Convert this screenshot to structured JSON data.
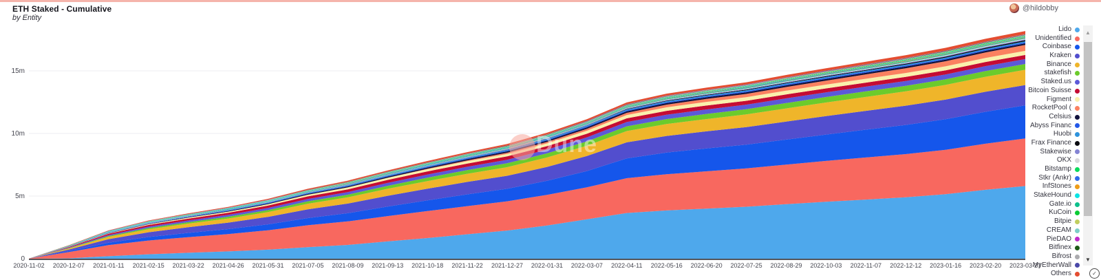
{
  "header": {
    "title": "ETH Staked - Cumulative",
    "subtitle": "by Entity",
    "author": "@hildobby"
  },
  "watermark": {
    "text": "Dune"
  },
  "icons": {
    "scroll_up": "▲",
    "scroll_down": "▼",
    "check": "✓"
  },
  "chart_data": {
    "type": "area",
    "stacked": true,
    "title": "ETH Staked - Cumulative",
    "subtitle": "by Entity",
    "unit": "ETH (millions)",
    "grid": true,
    "legend_position": "right",
    "ylim": [
      0,
      18.5
    ],
    "yticks": [
      {
        "label": "0",
        "value": 0
      },
      {
        "label": "5m",
        "value": 5
      },
      {
        "label": "10m",
        "value": 10
      },
      {
        "label": "15m",
        "value": 15
      }
    ],
    "x": [
      "2020-11-02",
      "2020-12-07",
      "2021-01-11",
      "2021-02-15",
      "2021-03-22",
      "2021-04-26",
      "2021-05-31",
      "2021-07-05",
      "2021-08-09",
      "2021-09-13",
      "2021-10-18",
      "2021-11-22",
      "2021-12-27",
      "2022-01-31",
      "2022-03-07",
      "2022-04-11",
      "2022-05-16",
      "2022-06-20",
      "2022-07-25",
      "2022-08-29",
      "2022-10-03",
      "2022-11-07",
      "2022-12-12",
      "2023-01-16",
      "2023-02-20",
      "2023-03-27"
    ],
    "series": [
      {
        "name": "Lido",
        "color": "#4EA8EC",
        "values": [
          0,
          0.03,
          0.2,
          0.35,
          0.47,
          0.58,
          0.72,
          0.92,
          1.1,
          1.38,
          1.65,
          1.95,
          2.25,
          2.65,
          3.15,
          3.65,
          3.85,
          4.0,
          4.15,
          4.35,
          4.55,
          4.72,
          4.9,
          5.15,
          5.5,
          5.8
        ]
      },
      {
        "name": "Unidentified",
        "color": "#F8685F",
        "values": [
          0.01,
          0.5,
          0.88,
          1.1,
          1.25,
          1.38,
          1.55,
          1.75,
          1.88,
          2.02,
          2.15,
          2.25,
          2.33,
          2.45,
          2.55,
          2.78,
          2.9,
          2.98,
          3.06,
          3.16,
          3.26,
          3.36,
          3.45,
          3.55,
          3.68,
          3.8
        ]
      },
      {
        "name": "Coinbase",
        "color": "#1556EB",
        "values": [
          0,
          0.08,
          0.2,
          0.28,
          0.34,
          0.4,
          0.47,
          0.57,
          0.65,
          0.76,
          0.86,
          0.94,
          1.0,
          1.12,
          1.3,
          1.58,
          1.72,
          1.82,
          1.9,
          2.0,
          2.1,
          2.22,
          2.33,
          2.44,
          2.55,
          2.65
        ]
      },
      {
        "name": "Kraken",
        "color": "#524ECE",
        "values": [
          0,
          0.12,
          0.28,
          0.38,
          0.45,
          0.52,
          0.6,
          0.7,
          0.77,
          0.86,
          0.93,
          0.99,
          1.04,
          1.11,
          1.2,
          1.28,
          1.33,
          1.37,
          1.4,
          1.44,
          1.48,
          1.51,
          1.54,
          1.57,
          1.6,
          1.62
        ]
      },
      {
        "name": "Binance",
        "color": "#EFB52A",
        "values": [
          0,
          0.08,
          0.18,
          0.24,
          0.29,
          0.33,
          0.38,
          0.45,
          0.5,
          0.56,
          0.61,
          0.65,
          0.69,
          0.75,
          0.82,
          0.9,
          0.95,
          0.98,
          1.01,
          1.05,
          1.08,
          1.11,
          1.14,
          1.17,
          1.2,
          1.22
        ]
      },
      {
        "name": "stakefish",
        "color": "#6CCB2C",
        "values": [
          0,
          0.03,
          0.07,
          0.1,
          0.12,
          0.14,
          0.16,
          0.19,
          0.21,
          0.24,
          0.27,
          0.29,
          0.31,
          0.33,
          0.35,
          0.38,
          0.4,
          0.41,
          0.42,
          0.43,
          0.44,
          0.44,
          0.45,
          0.45,
          0.46,
          0.46
        ]
      },
      {
        "name": "Staked.us",
        "color": "#5C59D8",
        "values": [
          0,
          0.04,
          0.08,
          0.11,
          0.13,
          0.15,
          0.17,
          0.19,
          0.21,
          0.23,
          0.25,
          0.27,
          0.28,
          0.3,
          0.32,
          0.34,
          0.35,
          0.36,
          0.36,
          0.37,
          0.37,
          0.38,
          0.38,
          0.38,
          0.39,
          0.39
        ]
      },
      {
        "name": "Bitcoin Suisse",
        "color": "#C50C33",
        "values": [
          0,
          0.05,
          0.1,
          0.13,
          0.15,
          0.17,
          0.19,
          0.21,
          0.22,
          0.24,
          0.25,
          0.26,
          0.27,
          0.28,
          0.29,
          0.3,
          0.31,
          0.31,
          0.31,
          0.32,
          0.32,
          0.32,
          0.33,
          0.33,
          0.33,
          0.33
        ]
      },
      {
        "name": "Figment",
        "color": "#FAF0AC",
        "values": [
          0,
          0.02,
          0.04,
          0.06,
          0.08,
          0.09,
          0.11,
          0.13,
          0.15,
          0.17,
          0.18,
          0.19,
          0.2,
          0.22,
          0.24,
          0.26,
          0.28,
          0.29,
          0.29,
          0.3,
          0.3,
          0.31,
          0.31,
          0.32,
          0.32,
          0.33
        ]
      },
      {
        "name": "RocketPool (",
        "color": "#FB8160",
        "values": [
          0,
          0,
          0,
          0,
          0,
          0,
          0,
          0,
          0,
          0,
          0.03,
          0.06,
          0.09,
          0.12,
          0.15,
          0.18,
          0.21,
          0.24,
          0.26,
          0.29,
          0.32,
          0.35,
          0.38,
          0.41,
          0.44,
          0.47
        ]
      },
      {
        "name": "Celsius",
        "color": "#12123C",
        "values": [
          0,
          0.01,
          0.02,
          0.03,
          0.04,
          0.05,
          0.06,
          0.07,
          0.08,
          0.09,
          0.1,
          0.1,
          0.11,
          0.11,
          0.12,
          0.12,
          0.13,
          0.13,
          0.13,
          0.13,
          0.13,
          0.13,
          0.13,
          0.13,
          0.13,
          0.13
        ]
      },
      {
        "name": "Abyss Financ",
        "color": "#2458E8",
        "values": [
          0,
          0.01,
          0.02,
          0.02,
          0.03,
          0.03,
          0.04,
          0.04,
          0.05,
          0.05,
          0.05,
          0.06,
          0.06,
          0.06,
          0.07,
          0.07,
          0.07,
          0.07,
          0.08,
          0.08,
          0.08,
          0.08,
          0.08,
          0.08,
          0.08,
          0.08
        ]
      },
      {
        "name": "Huobi",
        "color": "#2E93DC",
        "values": [
          0,
          0.01,
          0.02,
          0.03,
          0.03,
          0.04,
          0.04,
          0.05,
          0.05,
          0.06,
          0.06,
          0.06,
          0.07,
          0.07,
          0.07,
          0.08,
          0.08,
          0.08,
          0.08,
          0.08,
          0.08,
          0.08,
          0.08,
          0.08,
          0.08,
          0.08
        ]
      },
      {
        "name": "Frax Finance",
        "color": "#0B0C12",
        "values": [
          0,
          0,
          0,
          0,
          0,
          0,
          0,
          0,
          0,
          0,
          0,
          0,
          0.01,
          0.02,
          0.02,
          0.03,
          0.04,
          0.04,
          0.05,
          0.05,
          0.06,
          0.06,
          0.07,
          0.07,
          0.08,
          0.09
        ]
      },
      {
        "name": "Stakewise",
        "color": "#8484D4",
        "values": [
          0,
          0.01,
          0.01,
          0.02,
          0.02,
          0.03,
          0.03,
          0.03,
          0.04,
          0.04,
          0.04,
          0.05,
          0.05,
          0.05,
          0.05,
          0.06,
          0.06,
          0.06,
          0.06,
          0.06,
          0.06,
          0.06,
          0.06,
          0.07,
          0.07,
          0.07
        ]
      },
      {
        "name": "OKX",
        "color": "#D9D9DC",
        "values": [
          0,
          0,
          0.01,
          0.01,
          0.01,
          0.01,
          0.02,
          0.02,
          0.02,
          0.02,
          0.02,
          0.03,
          0.03,
          0.03,
          0.03,
          0.04,
          0.04,
          0.04,
          0.04,
          0.05,
          0.05,
          0.05,
          0.05,
          0.06,
          0.06,
          0.06
        ]
      },
      {
        "name": "Bitstamp",
        "color": "#0ADB5B",
        "values": [
          0,
          0.01,
          0.01,
          0.01,
          0.02,
          0.02,
          0.02,
          0.02,
          0.02,
          0.03,
          0.03,
          0.03,
          0.03,
          0.03,
          0.03,
          0.03,
          0.04,
          0.04,
          0.04,
          0.04,
          0.04,
          0.04,
          0.04,
          0.04,
          0.04,
          0.04
        ]
      },
      {
        "name": "Stkr (Ankr)",
        "color": "#2F6BEA",
        "values": [
          0,
          0.01,
          0.01,
          0.02,
          0.02,
          0.02,
          0.02,
          0.02,
          0.03,
          0.03,
          0.03,
          0.03,
          0.03,
          0.03,
          0.03,
          0.03,
          0.03,
          0.04,
          0.04,
          0.04,
          0.04,
          0.04,
          0.04,
          0.04,
          0.04,
          0.04
        ]
      },
      {
        "name": "InfStones",
        "color": "#EE9D19",
        "values": [
          0,
          0,
          0.01,
          0.01,
          0.01,
          0.01,
          0.01,
          0.01,
          0.02,
          0.02,
          0.02,
          0.02,
          0.02,
          0.02,
          0.02,
          0.03,
          0.03,
          0.03,
          0.03,
          0.03,
          0.03,
          0.03,
          0.04,
          0.04,
          0.04,
          0.04
        ]
      },
      {
        "name": "StakeHound",
        "color": "#0CE4E4",
        "values": [
          0,
          0.01,
          0.03,
          0.03,
          0.03,
          0.03,
          0.03,
          0.03,
          0.03,
          0.03,
          0.03,
          0.03,
          0.03,
          0.03,
          0.03,
          0.03,
          0.03,
          0.03,
          0.03,
          0.03,
          0.03,
          0.03,
          0.03,
          0.03,
          0.03,
          0.03
        ]
      },
      {
        "name": "Gate.io",
        "color": "#0EC08C",
        "values": [
          0,
          0,
          0.01,
          0.01,
          0.01,
          0.01,
          0.01,
          0.01,
          0.02,
          0.02,
          0.02,
          0.02,
          0.02,
          0.02,
          0.02,
          0.02,
          0.03,
          0.03,
          0.03,
          0.03,
          0.03,
          0.03,
          0.03,
          0.03,
          0.03,
          0.03
        ]
      },
      {
        "name": "KuCoin",
        "color": "#0BCB34",
        "values": [
          0,
          0,
          0,
          0.01,
          0.01,
          0.01,
          0.01,
          0.01,
          0.01,
          0.01,
          0.02,
          0.02,
          0.02,
          0.02,
          0.02,
          0.02,
          0.02,
          0.02,
          0.02,
          0.02,
          0.03,
          0.03,
          0.03,
          0.03,
          0.03,
          0.03
        ]
      },
      {
        "name": "Bitpie",
        "color": "#C1CE5F",
        "values": [
          0,
          0.01,
          0.01,
          0.01,
          0.01,
          0.01,
          0.02,
          0.02,
          0.02,
          0.02,
          0.02,
          0.02,
          0.02,
          0.02,
          0.02,
          0.02,
          0.02,
          0.02,
          0.02,
          0.03,
          0.03,
          0.03,
          0.03,
          0.03,
          0.03,
          0.03
        ]
      },
      {
        "name": "CREAM",
        "color": "#7BCEC8",
        "values": [
          0,
          0.01,
          0.01,
          0.01,
          0.01,
          0.01,
          0.01,
          0.01,
          0.01,
          0.02,
          0.02,
          0.02,
          0.02,
          0.02,
          0.02,
          0.02,
          0.02,
          0.02,
          0.02,
          0.02,
          0.02,
          0.02,
          0.02,
          0.02,
          0.02,
          0.02
        ]
      },
      {
        "name": "PieDAO",
        "color": "#BF2ACA",
        "values": [
          0,
          0,
          0.01,
          0.01,
          0.01,
          0.01,
          0.01,
          0.01,
          0.01,
          0.01,
          0.01,
          0.01,
          0.02,
          0.02,
          0.02,
          0.02,
          0.02,
          0.02,
          0.02,
          0.02,
          0.02,
          0.02,
          0.02,
          0.02,
          0.02,
          0.02
        ]
      },
      {
        "name": "Bitfinex",
        "color": "#1D5A17",
        "values": [
          0,
          0.01,
          0.01,
          0.01,
          0.01,
          0.01,
          0.01,
          0.02,
          0.02,
          0.02,
          0.02,
          0.02,
          0.02,
          0.02,
          0.02,
          0.02,
          0.02,
          0.02,
          0.02,
          0.02,
          0.02,
          0.03,
          0.03,
          0.03,
          0.03,
          0.03
        ]
      },
      {
        "name": "Bifrost",
        "color": "#ABABAE",
        "values": [
          0,
          0,
          0,
          0.01,
          0.01,
          0.01,
          0.01,
          0.01,
          0.01,
          0.01,
          0.01,
          0.01,
          0.01,
          0.02,
          0.02,
          0.02,
          0.02,
          0.02,
          0.02,
          0.02,
          0.02,
          0.02,
          0.02,
          0.02,
          0.02,
          0.02
        ]
      },
      {
        "name": "MyEtherWall",
        "color": "#4A48A8",
        "values": [
          0,
          0,
          0.01,
          0.01,
          0.01,
          0.01,
          0.01,
          0.01,
          0.01,
          0.01,
          0.01,
          0.01,
          0.01,
          0.01,
          0.02,
          0.02,
          0.02,
          0.02,
          0.02,
          0.02,
          0.02,
          0.02,
          0.02,
          0.02,
          0.02,
          0.02
        ]
      },
      {
        "name": "Others",
        "color": "#E44D31",
        "values": [
          0,
          0.02,
          0.03,
          0.04,
          0.05,
          0.06,
          0.07,
          0.08,
          0.09,
          0.1,
          0.11,
          0.12,
          0.12,
          0.13,
          0.14,
          0.15,
          0.16,
          0.17,
          0.18,
          0.19,
          0.2,
          0.21,
          0.22,
          0.23,
          0.24,
          0.25
        ]
      }
    ]
  }
}
